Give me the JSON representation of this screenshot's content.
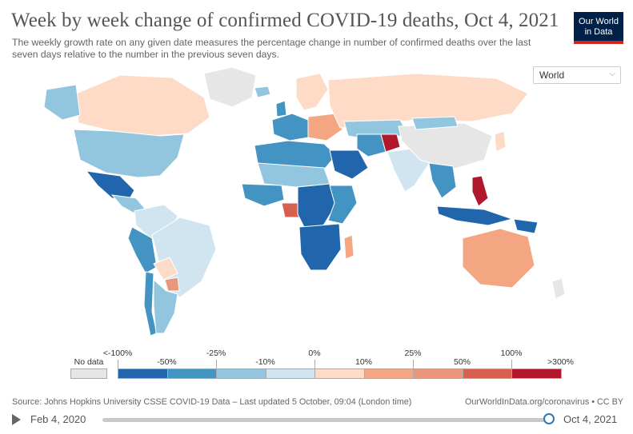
{
  "header": {
    "title": "Week by week change of confirmed COVID-19 deaths, Oct 4, 2021",
    "subtitle": "The weekly growth rate on any given date measures the percentage change in number of confirmed deaths over the last seven days relative to the number in the previous seven days.",
    "logo_line1": "Our World",
    "logo_line2": "in Data"
  },
  "region_selector": {
    "value": "World",
    "icon": "chevron-down-icon"
  },
  "legend": {
    "no_data_label": "No data",
    "no_data_color": "#e6e6e6",
    "upper_ticks": [
      "<-100%",
      "-25%",
      "0%",
      "25%",
      "100%"
    ],
    "lower_ticks": [
      "-50%",
      "-10%",
      "10%",
      "50%",
      ">300%"
    ],
    "bins": [
      {
        "color": "#2166ac"
      },
      {
        "color": "#4393c3"
      },
      {
        "color": "#92c5de"
      },
      {
        "color": "#d1e5f0"
      },
      {
        "color": "#fddbc7"
      },
      {
        "color": "#f4a582"
      },
      {
        "color": "#e9967a"
      },
      {
        "color": "#d6604d"
      },
      {
        "color": "#b2182b"
      }
    ]
  },
  "regions": [
    {
      "name": "Greenland",
      "color": "#e6e6e6"
    },
    {
      "name": "Canada",
      "color": "#fddbc7"
    },
    {
      "name": "Alaska",
      "color": "#92c5de"
    },
    {
      "name": "United States",
      "color": "#92c5de"
    },
    {
      "name": "Mexico",
      "color": "#2166ac"
    },
    {
      "name": "Central America",
      "color": "#92c5de"
    },
    {
      "name": "Colombia / Venezuela",
      "color": "#d1e5f0"
    },
    {
      "name": "Peru / Ecuador",
      "color": "#4393c3"
    },
    {
      "name": "Brazil",
      "color": "#d1e5f0"
    },
    {
      "name": "Bolivia",
      "color": "#fddbc7"
    },
    {
      "name": "Paraguay",
      "color": "#e9967a"
    },
    {
      "name": "Chile",
      "color": "#4393c3"
    },
    {
      "name": "Argentina",
      "color": "#92c5de"
    },
    {
      "name": "Iceland",
      "color": "#92c5de"
    },
    {
      "name": "United Kingdom",
      "color": "#4393c3"
    },
    {
      "name": "Scandinavia",
      "color": "#fddbc7"
    },
    {
      "name": "Western Europe",
      "color": "#4393c3"
    },
    {
      "name": "Eastern Europe",
      "color": "#f4a582"
    },
    {
      "name": "Russia",
      "color": "#fddbc7"
    },
    {
      "name": "Kazakhstan",
      "color": "#92c5de"
    },
    {
      "name": "North Africa",
      "color": "#4393c3"
    },
    {
      "name": "Sahel",
      "color": "#92c5de"
    },
    {
      "name": "West Africa",
      "color": "#4393c3"
    },
    {
      "name": "Cameroon",
      "color": "#d6604d"
    },
    {
      "name": "Central Africa",
      "color": "#2166ac"
    },
    {
      "name": "East Africa",
      "color": "#4393c3"
    },
    {
      "name": "Southern Africa",
      "color": "#2166ac"
    },
    {
      "name": "Madagascar",
      "color": "#f4a582"
    },
    {
      "name": "Saudi Arabia",
      "color": "#2166ac"
    },
    {
      "name": "Iran",
      "color": "#4393c3"
    },
    {
      "name": "Afghanistan",
      "color": "#b2182b"
    },
    {
      "name": "India",
      "color": "#d1e5f0"
    },
    {
      "name": "China",
      "color": "#e6e6e6"
    },
    {
      "name": "Mongolia",
      "color": "#92c5de"
    },
    {
      "name": "Japan",
      "color": "#fddbc7"
    },
    {
      "name": "Southeast Asia",
      "color": "#4393c3"
    },
    {
      "name": "Philippines",
      "color": "#b2182b"
    },
    {
      "name": "Indonesia",
      "color": "#2166ac"
    },
    {
      "name": "Papua New Guinea",
      "color": "#2166ac"
    },
    {
      "name": "Australia",
      "color": "#f4a582"
    },
    {
      "name": "New Zealand",
      "color": "#e6e6e6"
    }
  ],
  "footer": {
    "source": "Source: Johns Hopkins University CSSE COVID-19 Data – Last updated 5 October, 09:04 (London time)",
    "credit": "OurWorldInData.org/coronavirus • CC BY"
  },
  "timeline": {
    "start_label": "Feb 4, 2020",
    "end_label": "Oct 4, 2021",
    "position_fraction": 0.99
  }
}
